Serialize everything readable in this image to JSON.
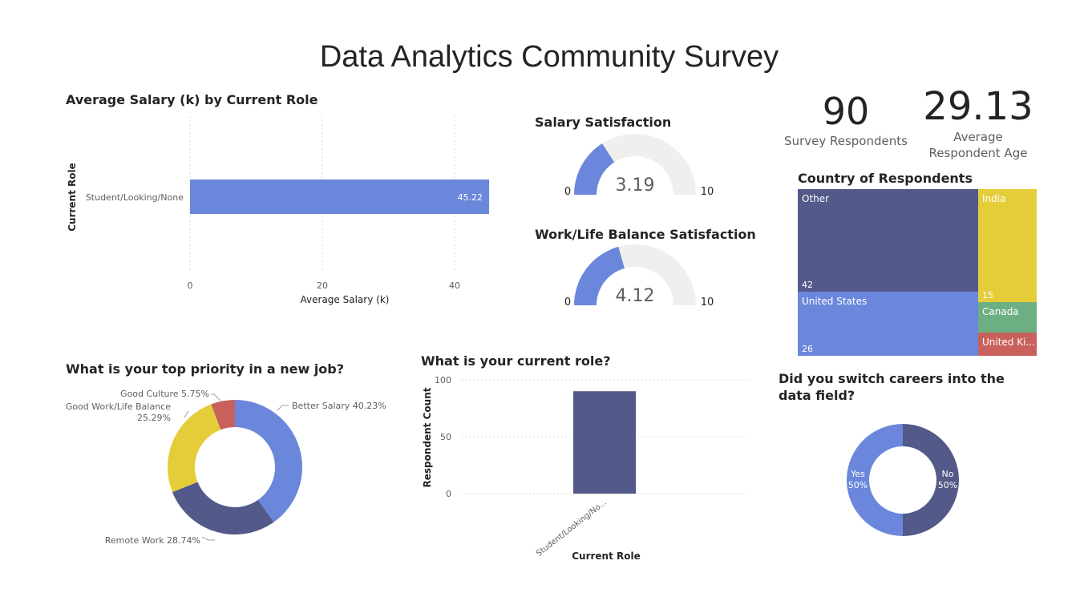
{
  "title": "Data Analytics Community Survey",
  "colors": {
    "blue": "#6B87DB",
    "navy": "#535988",
    "yellow": "#E5CD3A",
    "red": "#C8605C",
    "green": "#6CAF83",
    "gauge_bg": "#F0EFEE",
    "grid": "#D9D9D9"
  },
  "kpis": [
    {
      "value": "90",
      "label": "Survey Respondents"
    },
    {
      "value": "29.13",
      "label": "Average\nRespondent Age"
    }
  ],
  "chart_data": [
    {
      "type": "bar",
      "orientation": "horizontal",
      "title": "Average Salary (k) by Current Role",
      "xlabel": "Average Salary (k)",
      "ylabel": "Current Role",
      "categories": [
        "Student/Looking/None"
      ],
      "values": [
        45.22
      ],
      "data_labels": [
        "45.22"
      ],
      "xticks": [
        "0",
        "20",
        "40"
      ],
      "xlim": [
        0,
        45.22
      ],
      "grid": true
    },
    {
      "type": "gauge",
      "title": "Salary Satisfaction",
      "value": 3.19,
      "value_label": "3.19",
      "min": 0,
      "max": 10,
      "min_label": "0",
      "max_label": "10"
    },
    {
      "type": "gauge",
      "title": "Work/Life Balance Satisfaction",
      "value": 4.12,
      "value_label": "4.12",
      "min": 0,
      "max": 10,
      "min_label": "0",
      "max_label": "10"
    },
    {
      "type": "treemap",
      "title": "Country of Respondents",
      "items": [
        {
          "name": "Other",
          "value": 42,
          "value_label": "42",
          "color": "#535988"
        },
        {
          "name": "United States",
          "value": 26,
          "value_label": "26",
          "color": "#6B87DB"
        },
        {
          "name": "India",
          "value": 15,
          "value_label": "15",
          "color": "#E5CD3A"
        },
        {
          "name": "Canada",
          "value": 4,
          "value_label": "",
          "color": "#6CAF83"
        },
        {
          "name": "United Ki...",
          "value": 3,
          "value_label": "",
          "color": "#C8605C"
        }
      ]
    },
    {
      "type": "donut",
      "title": "What is your top priority in a new job?",
      "slices": [
        {
          "label": "Better Salary 40.23%",
          "value": 40.23,
          "color": "#6B87DB"
        },
        {
          "label": "Remote Work 28.74%",
          "value": 28.74,
          "color": "#535988"
        },
        {
          "label": "Good Work/Life Balance\n25.29%",
          "value": 25.29,
          "color": "#E5CD3A"
        },
        {
          "label": "Good Culture 5.75%",
          "value": 5.75,
          "color": "#C8605C"
        }
      ]
    },
    {
      "type": "bar",
      "title": "What is your current role?",
      "xlabel": "Current Role",
      "ylabel": "Respondent Count",
      "categories": [
        "Student/Looking/No..."
      ],
      "values": [
        90
      ],
      "yticks": [
        "0",
        "50",
        "100"
      ],
      "ylim": [
        0,
        100
      ],
      "grid": true
    },
    {
      "type": "donut",
      "title": "Did you switch careers into the data field?",
      "slices": [
        {
          "label": "No\n50%",
          "value": 50,
          "color": "#535988"
        },
        {
          "label": "Yes\n50%",
          "value": 50,
          "color": "#6B87DB"
        }
      ]
    }
  ]
}
